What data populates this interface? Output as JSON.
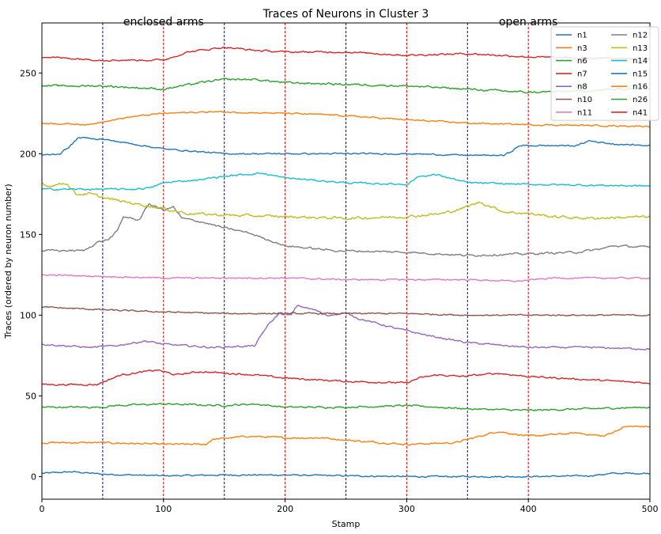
{
  "chart_data": {
    "type": "line",
    "title": "Traces of Neurons in Cluster 3",
    "xlabel": "Stamp",
    "ylabel": "Traces (ordered by neuron number)",
    "xlim": [
      0,
      500
    ],
    "ylim": [
      -14,
      281
    ],
    "xticks": [
      0,
      100,
      200,
      300,
      400,
      500
    ],
    "yticks": [
      0,
      50,
      100,
      150,
      200,
      250
    ],
    "grid": false,
    "legend_position": "top-right",
    "legend_columns": 2,
    "vlines_blue": [
      50,
      150,
      250,
      350
    ],
    "vlines_red": [
      100,
      200,
      300,
      400
    ],
    "vline_colors": {
      "blue": "#0000cc",
      "red": "#dd0000"
    },
    "annotations": [
      {
        "text": "enclosed arms",
        "x": 100
      },
      {
        "text": "open arms",
        "x": 400
      }
    ],
    "series": [
      {
        "name": "n1",
        "color": "#1f77b4",
        "noise": 0.5,
        "knots": [
          [
            0,
            2
          ],
          [
            25,
            3
          ],
          [
            50,
            1.5
          ],
          [
            100,
            0.5
          ],
          [
            150,
            1
          ],
          [
            200,
            1
          ],
          [
            250,
            0.5
          ],
          [
            300,
            0
          ],
          [
            350,
            0
          ],
          [
            400,
            0
          ],
          [
            450,
            0.5
          ],
          [
            470,
            2
          ],
          [
            500,
            2
          ]
        ]
      },
      {
        "name": "n3",
        "color": "#ff7f0e",
        "noise": 0.6,
        "knots": [
          [
            0,
            21
          ],
          [
            50,
            21
          ],
          [
            100,
            20
          ],
          [
            135,
            20
          ],
          [
            140,
            23
          ],
          [
            170,
            25
          ],
          [
            200,
            24
          ],
          [
            230,
            24
          ],
          [
            260,
            22
          ],
          [
            300,
            20
          ],
          [
            340,
            21
          ],
          [
            355,
            24
          ],
          [
            375,
            28
          ],
          [
            400,
            25
          ],
          [
            440,
            27
          ],
          [
            462,
            25
          ],
          [
            480,
            31
          ],
          [
            500,
            31
          ]
        ]
      },
      {
        "name": "n6",
        "color": "#2ca02c",
        "noise": 0.6,
        "knots": [
          [
            0,
            43
          ],
          [
            50,
            43
          ],
          [
            60,
            44
          ],
          [
            100,
            45
          ],
          [
            150,
            44
          ],
          [
            175,
            45
          ],
          [
            200,
            43
          ],
          [
            250,
            43
          ],
          [
            300,
            44
          ],
          [
            350,
            42
          ],
          [
            400,
            41
          ],
          [
            450,
            42
          ],
          [
            500,
            43
          ]
        ]
      },
      {
        "name": "n7",
        "color": "#d62728",
        "noise": 0.6,
        "knots": [
          [
            0,
            57
          ],
          [
            45,
            57
          ],
          [
            55,
            60
          ],
          [
            65,
            63
          ],
          [
            95,
            66
          ],
          [
            110,
            63
          ],
          [
            130,
            65
          ],
          [
            175,
            63
          ],
          [
            200,
            61
          ],
          [
            250,
            59
          ],
          [
            300,
            58
          ],
          [
            310,
            61
          ],
          [
            325,
            63
          ],
          [
            345,
            62
          ],
          [
            375,
            64
          ],
          [
            400,
            62
          ],
          [
            450,
            60
          ],
          [
            500,
            58
          ]
        ]
      },
      {
        "name": "n8",
        "color": "#9467bd",
        "noise": 0.6,
        "knots": [
          [
            0,
            82
          ],
          [
            40,
            80
          ],
          [
            60,
            81
          ],
          [
            85,
            84
          ],
          [
            100,
            82
          ],
          [
            140,
            80
          ],
          [
            175,
            81
          ],
          [
            185,
            93
          ],
          [
            195,
            101
          ],
          [
            205,
            100
          ],
          [
            210,
            106
          ],
          [
            225,
            103
          ],
          [
            235,
            100
          ],
          [
            252,
            101
          ],
          [
            260,
            98
          ],
          [
            290,
            92
          ],
          [
            320,
            87
          ],
          [
            350,
            83
          ],
          [
            400,
            80
          ],
          [
            450,
            80
          ],
          [
            500,
            79
          ]
        ]
      },
      {
        "name": "n10",
        "color": "#8c564b",
        "noise": 0.5,
        "knots": [
          [
            0,
            105
          ],
          [
            30,
            104
          ],
          [
            60,
            103
          ],
          [
            100,
            102
          ],
          [
            150,
            101
          ],
          [
            200,
            101
          ],
          [
            250,
            101
          ],
          [
            300,
            101
          ],
          [
            350,
            100
          ],
          [
            400,
            100
          ],
          [
            500,
            100
          ]
        ]
      },
      {
        "name": "n11",
        "color": "#e377c2",
        "noise": 0.5,
        "knots": [
          [
            0,
            125
          ],
          [
            50,
            124
          ],
          [
            100,
            123
          ],
          [
            150,
            123
          ],
          [
            200,
            123
          ],
          [
            250,
            122
          ],
          [
            300,
            122
          ],
          [
            350,
            122
          ],
          [
            390,
            121
          ],
          [
            420,
            123
          ],
          [
            500,
            123
          ]
        ]
      },
      {
        "name": "n12",
        "color": "#7f7f7f",
        "noise": 0.7,
        "knots": [
          [
            0,
            140
          ],
          [
            35,
            140
          ],
          [
            45,
            145
          ],
          [
            55,
            147
          ],
          [
            62,
            152
          ],
          [
            67,
            161
          ],
          [
            80,
            159
          ],
          [
            88,
            169
          ],
          [
            100,
            165
          ],
          [
            108,
            167
          ],
          [
            115,
            160
          ],
          [
            130,
            158
          ],
          [
            150,
            154
          ],
          [
            170,
            151
          ],
          [
            200,
            143
          ],
          [
            240,
            140
          ],
          [
            300,
            139
          ],
          [
            350,
            137
          ],
          [
            400,
            138
          ],
          [
            440,
            139
          ],
          [
            460,
            141
          ],
          [
            470,
            143
          ],
          [
            500,
            142
          ]
        ]
      },
      {
        "name": "n13",
        "color": "#bcbd22",
        "noise": 0.9,
        "knots": [
          [
            0,
            182
          ],
          [
            5,
            180
          ],
          [
            20,
            182
          ],
          [
            28,
            175
          ],
          [
            40,
            175
          ],
          [
            55,
            172
          ],
          [
            70,
            170
          ],
          [
            100,
            166
          ],
          [
            120,
            163
          ],
          [
            150,
            162
          ],
          [
            200,
            161
          ],
          [
            250,
            160
          ],
          [
            300,
            161
          ],
          [
            330,
            163
          ],
          [
            345,
            166
          ],
          [
            360,
            170
          ],
          [
            380,
            164
          ],
          [
            400,
            163
          ],
          [
            420,
            161
          ],
          [
            450,
            160
          ],
          [
            500,
            161
          ]
        ]
      },
      {
        "name": "n14",
        "color": "#17becf",
        "noise": 0.6,
        "knots": [
          [
            0,
            178
          ],
          [
            50,
            178
          ],
          [
            75,
            178
          ],
          [
            90,
            179
          ],
          [
            100,
            182
          ],
          [
            130,
            184
          ],
          [
            150,
            186
          ],
          [
            180,
            188
          ],
          [
            200,
            185
          ],
          [
            250,
            182
          ],
          [
            300,
            181
          ],
          [
            310,
            186
          ],
          [
            325,
            187
          ],
          [
            350,
            182
          ],
          [
            400,
            181
          ],
          [
            500,
            180
          ]
        ]
      },
      {
        "name": "n15",
        "color": "#1f77b4",
        "noise": 0.5,
        "knots": [
          [
            0,
            199
          ],
          [
            15,
            200
          ],
          [
            25,
            206
          ],
          [
            30,
            210
          ],
          [
            50,
            209
          ],
          [
            75,
            206
          ],
          [
            100,
            203
          ],
          [
            150,
            200
          ],
          [
            200,
            200
          ],
          [
            250,
            200
          ],
          [
            300,
            200
          ],
          [
            350,
            199
          ],
          [
            380,
            199
          ],
          [
            385,
            201
          ],
          [
            393,
            205
          ],
          [
            400,
            205
          ],
          [
            440,
            205
          ],
          [
            450,
            208
          ],
          [
            470,
            206
          ],
          [
            500,
            205
          ]
        ]
      },
      {
        "name": "n16",
        "color": "#ff7f0e",
        "noise": 0.5,
        "knots": [
          [
            0,
            219
          ],
          [
            40,
            218
          ],
          [
            50,
            220
          ],
          [
            75,
            223
          ],
          [
            100,
            225
          ],
          [
            140,
            226
          ],
          [
            200,
            225
          ],
          [
            240,
            224
          ],
          [
            300,
            221
          ],
          [
            350,
            219
          ],
          [
            400,
            218
          ],
          [
            500,
            217
          ]
        ]
      },
      {
        "name": "n26",
        "color": "#2ca02c",
        "noise": 0.7,
        "knots": [
          [
            0,
            242
          ],
          [
            50,
            242
          ],
          [
            100,
            240
          ],
          [
            130,
            244
          ],
          [
            150,
            246
          ],
          [
            175,
            246
          ],
          [
            200,
            244
          ],
          [
            250,
            243
          ],
          [
            300,
            242
          ],
          [
            350,
            240
          ],
          [
            400,
            238
          ],
          [
            450,
            239
          ],
          [
            500,
            241
          ]
        ]
      },
      {
        "name": "n41",
        "color": "#d62728",
        "noise": 0.6,
        "knots": [
          [
            0,
            260
          ],
          [
            50,
            258
          ],
          [
            100,
            258
          ],
          [
            120,
            263
          ],
          [
            150,
            266
          ],
          [
            175,
            264
          ],
          [
            200,
            263
          ],
          [
            250,
            263
          ],
          [
            300,
            261
          ],
          [
            350,
            262
          ],
          [
            400,
            260
          ],
          [
            450,
            259
          ],
          [
            500,
            259
          ]
        ]
      }
    ]
  }
}
